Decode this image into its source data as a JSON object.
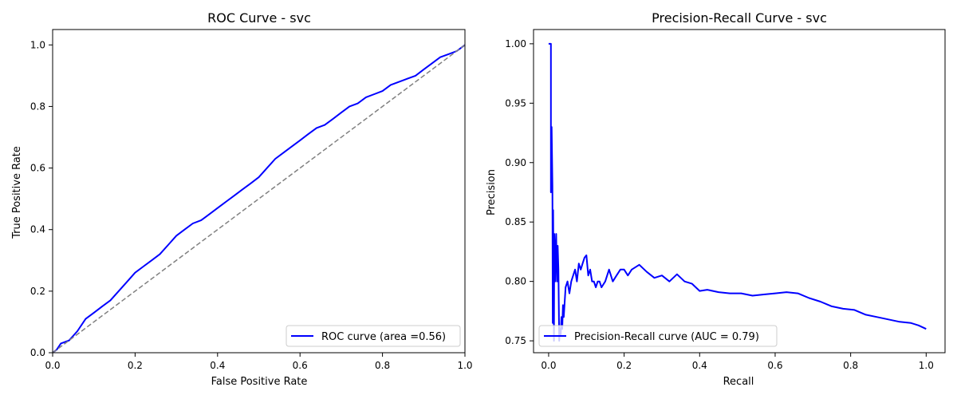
{
  "chart_data": [
    {
      "type": "line",
      "title": "ROC Curve - svc",
      "xlabel": "False Positive Rate",
      "ylabel": "True Positive Rate",
      "xlim": [
        0,
        1
      ],
      "ylim": [
        0,
        1.05
      ],
      "xticks": [
        "0.0",
        "0.2",
        "0.4",
        "0.6",
        "0.8",
        "1.0"
      ],
      "yticks": [
        "0.0",
        "0.2",
        "0.4",
        "0.6",
        "0.8",
        "1.0"
      ],
      "legend_position": "lower-right",
      "grid": false,
      "series": [
        {
          "name": "ROC curve (area =0.56)",
          "color": "#0000ff",
          "style": "solid",
          "x": [
            0.0,
            0.01,
            0.02,
            0.04,
            0.06,
            0.08,
            0.1,
            0.12,
            0.14,
            0.16,
            0.18,
            0.2,
            0.22,
            0.24,
            0.26,
            0.28,
            0.3,
            0.32,
            0.34,
            0.36,
            0.38,
            0.4,
            0.42,
            0.44,
            0.46,
            0.48,
            0.5,
            0.52,
            0.54,
            0.56,
            0.58,
            0.6,
            0.62,
            0.64,
            0.66,
            0.68,
            0.7,
            0.72,
            0.74,
            0.76,
            0.78,
            0.8,
            0.82,
            0.84,
            0.86,
            0.88,
            0.9,
            0.92,
            0.94,
            0.96,
            0.98,
            1.0
          ],
          "y": [
            0.0,
            0.01,
            0.03,
            0.04,
            0.07,
            0.11,
            0.13,
            0.15,
            0.17,
            0.2,
            0.23,
            0.26,
            0.28,
            0.3,
            0.32,
            0.35,
            0.38,
            0.4,
            0.42,
            0.43,
            0.45,
            0.47,
            0.49,
            0.51,
            0.53,
            0.55,
            0.57,
            0.6,
            0.63,
            0.65,
            0.67,
            0.69,
            0.71,
            0.73,
            0.74,
            0.76,
            0.78,
            0.8,
            0.81,
            0.83,
            0.84,
            0.85,
            0.87,
            0.88,
            0.89,
            0.9,
            0.92,
            0.94,
            0.96,
            0.97,
            0.98,
            1.0
          ]
        },
        {
          "name": "",
          "color": "#808080",
          "style": "dashed",
          "x": [
            0,
            1
          ],
          "y": [
            0,
            1
          ]
        }
      ]
    },
    {
      "type": "line",
      "title": "Precision-Recall Curve - svc",
      "xlabel": "Recall",
      "ylabel": "Precision",
      "xlim": [
        -0.04,
        1.05
      ],
      "ylim": [
        0.74,
        1.012
      ],
      "xticks": [
        "0.0",
        "0.2",
        "0.4",
        "0.6",
        "0.8",
        "1.0"
      ],
      "yticks": [
        "0.75",
        "0.80",
        "0.85",
        "0.90",
        "0.95",
        "1.00"
      ],
      "legend_position": "lower-left",
      "grid": false,
      "series": [
        {
          "name": "Precision-Recall curve (AUC = 0.79)",
          "color": "#0000ff",
          "style": "solid",
          "x": [
            0.0,
            0.002,
            0.004,
            0.006,
            0.006,
            0.008,
            0.01,
            0.011,
            0.012,
            0.014,
            0.015,
            0.017,
            0.018,
            0.02,
            0.022,
            0.024,
            0.026,
            0.028,
            0.03,
            0.032,
            0.034,
            0.036,
            0.038,
            0.04,
            0.045,
            0.05,
            0.055,
            0.06,
            0.065,
            0.07,
            0.075,
            0.08,
            0.085,
            0.09,
            0.095,
            0.1,
            0.105,
            0.11,
            0.115,
            0.12,
            0.125,
            0.13,
            0.135,
            0.14,
            0.15,
            0.16,
            0.17,
            0.18,
            0.19,
            0.2,
            0.21,
            0.22,
            0.24,
            0.26,
            0.28,
            0.3,
            0.32,
            0.34,
            0.36,
            0.38,
            0.4,
            0.42,
            0.45,
            0.48,
            0.51,
            0.54,
            0.57,
            0.6,
            0.63,
            0.66,
            0.69,
            0.72,
            0.75,
            0.78,
            0.81,
            0.84,
            0.87,
            0.9,
            0.93,
            0.96,
            0.98,
            1.0
          ],
          "y": [
            1.0,
            1.0,
            1.0,
            1.0,
            0.875,
            0.93,
            0.88,
            0.765,
            0.86,
            0.75,
            0.84,
            0.8,
            0.82,
            0.84,
            0.8,
            0.83,
            0.81,
            0.75,
            0.76,
            0.755,
            0.77,
            0.76,
            0.78,
            0.77,
            0.795,
            0.8,
            0.79,
            0.8,
            0.805,
            0.81,
            0.8,
            0.815,
            0.81,
            0.815,
            0.82,
            0.822,
            0.805,
            0.81,
            0.8,
            0.8,
            0.795,
            0.8,
            0.8,
            0.795,
            0.8,
            0.81,
            0.8,
            0.805,
            0.81,
            0.81,
            0.805,
            0.81,
            0.814,
            0.808,
            0.803,
            0.805,
            0.8,
            0.806,
            0.8,
            0.798,
            0.792,
            0.793,
            0.791,
            0.79,
            0.79,
            0.788,
            0.789,
            0.79,
            0.791,
            0.79,
            0.786,
            0.783,
            0.779,
            0.777,
            0.776,
            0.772,
            0.77,
            0.768,
            0.766,
            0.765,
            0.763,
            0.76
          ]
        }
      ]
    }
  ]
}
